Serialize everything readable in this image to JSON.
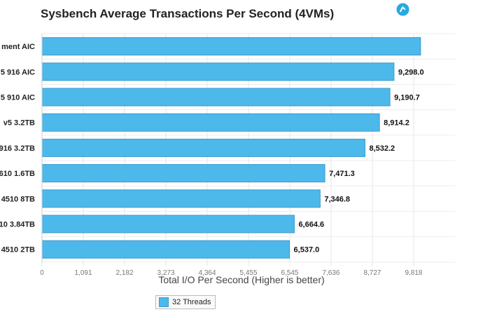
{
  "chart_data": {
    "type": "bar",
    "orientation": "horizontal",
    "title": "Sysbench Average Transactions Per Second (4VMs)",
    "xlabel": "Total I/O Per Second (Higher is better)",
    "ylabel": "",
    "categories": [
      "ment AIC",
      "5 916 AIC",
      "5 910 AIC",
      "v5 3.2TB",
      "916 3.2TB",
      "610 1.6TB",
      "4510 8TB",
      "10 3.84TB",
      "4510 2TB"
    ],
    "series": [
      {
        "name": "32 Threads",
        "values": [
          10000,
          9298.0,
          9190.7,
          8914.2,
          8532.2,
          7471.3,
          7346.8,
          6664.6,
          6537.0
        ],
        "labels": [
          "",
          "9,298.0",
          "9,190.7",
          "8,914.2",
          "8,532.2",
          "7,471.3",
          "7,346.8",
          "6,664.6",
          "6,537.0"
        ]
      }
    ],
    "xlim": [
      0,
      10909
    ],
    "xticks": [
      0,
      1091,
      2182,
      3273,
      4364,
      5455,
      6545,
      7636,
      8727,
      9818
    ],
    "xtick_labels": [
      "0",
      "1,091",
      "2,182",
      "3,273",
      "4,364",
      "5,455",
      "6,545",
      "7,636",
      "8,727",
      "9,818"
    ],
    "grid": true,
    "legend_position": "bottom-center",
    "colors": {
      "bar": "#4db8ea",
      "bar_border": "#3a9bd0"
    }
  },
  "legend": {
    "label": "32 Threads"
  },
  "icons": {
    "menu": "menu-icon"
  }
}
